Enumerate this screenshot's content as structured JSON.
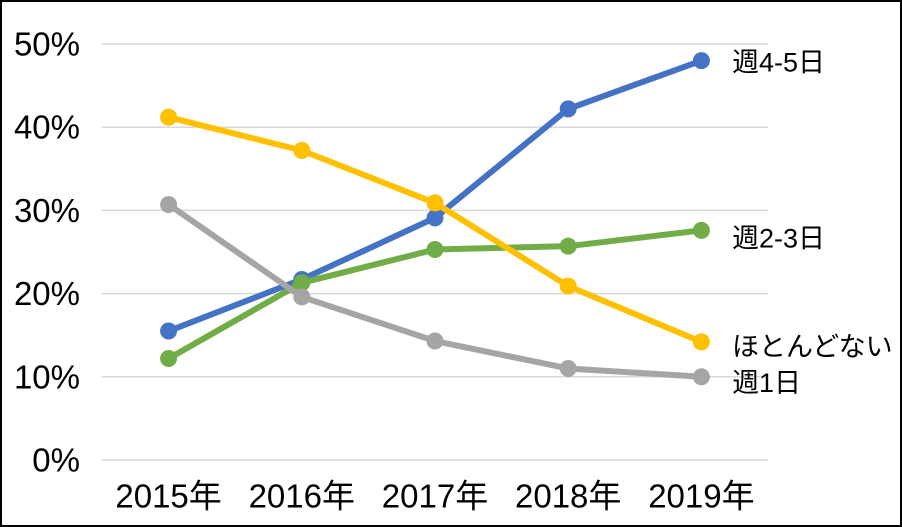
{
  "chart_data": {
    "type": "line",
    "title": "",
    "xlabel": "",
    "ylabel": "",
    "categories": [
      "2015年",
      "2016年",
      "2017年",
      "2018年",
      "2019年"
    ],
    "series": [
      {
        "name": "週4-5日",
        "color": "#4472C4",
        "values": [
          15.5,
          21.7,
          29.1,
          42.2,
          48.0
        ],
        "label_dy": 2
      },
      {
        "name": "週2-3日",
        "color": "#70AD47",
        "values": [
          12.2,
          21.3,
          25.3,
          25.7,
          27.6
        ],
        "label_dy": 8
      },
      {
        "name": "週1日",
        "color": "#A5A5A5",
        "values": [
          30.7,
          19.6,
          14.3,
          11.0,
          10.0
        ],
        "label_dy": 6
      },
      {
        "name": "ほとんどない",
        "color": "#FFC000",
        "values": [
          41.2,
          37.2,
          30.9,
          20.9,
          14.2
        ],
        "label_dy": 5
      }
    ],
    "ylim": [
      0,
      50
    ],
    "y_tick_step": 10,
    "y_tick_labels": [
      "0%",
      "10%",
      "20%",
      "30%",
      "40%",
      "50%"
    ],
    "grid": true,
    "gridline_color": "#D9D9D9",
    "legend_position": "right-of-last-point",
    "background_color": "#FFFFFF",
    "frame_border_color": "#000000",
    "text_color": "#000000",
    "marker_style": "filled-circle"
  }
}
